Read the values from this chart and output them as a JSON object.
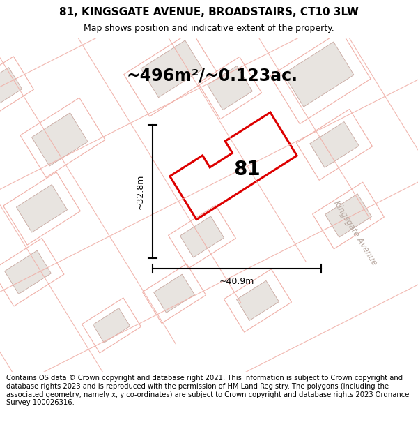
{
  "title": "81, KINGSGATE AVENUE, BROADSTAIRS, CT10 3LW",
  "subtitle": "Map shows position and indicative extent of the property.",
  "area_label": "~496m²/~0.123ac.",
  "number_label": "81",
  "dim_width": "~40.9m",
  "dim_height": "~32.8m",
  "road_label": "Kingsgate Avenue",
  "footer": "Contains OS data © Crown copyright and database right 2021. This information is subject to Crown copyright and database rights 2023 and is reproduced with the permission of HM Land Registry. The polygons (including the associated geometry, namely x, y co-ordinates) are subject to Crown copyright and database rights 2023 Ordnance Survey 100026316.",
  "bg_color": "#ffffff",
  "map_bg": "#ffffff",
  "title_fontsize": 11,
  "subtitle_fontsize": 9,
  "area_fontsize": 17,
  "number_fontsize": 20,
  "road_label_fontsize": 8.5,
  "footer_fontsize": 7.2,
  "red_color": "#dd0000",
  "building_fill": "#e8e4e0",
  "building_edge": "#c8a8a0",
  "plot_line_color": "#f0b8b0",
  "street_color": "#f0b0a8"
}
